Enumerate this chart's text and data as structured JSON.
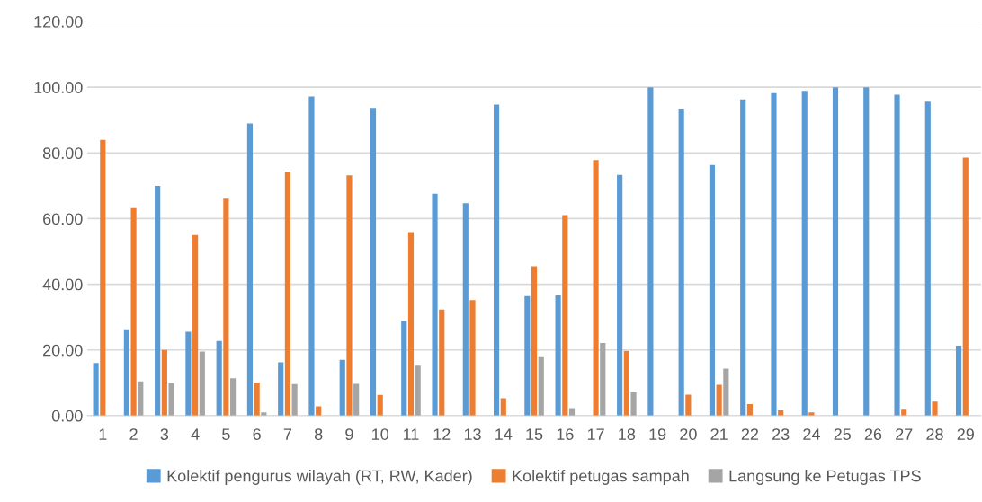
{
  "chart_data": {
    "type": "bar",
    "categories": [
      "1",
      "2",
      "3",
      "4",
      "5",
      "6",
      "7",
      "8",
      "9",
      "10",
      "11",
      "12",
      "13",
      "14",
      "15",
      "16",
      "17",
      "18",
      "19",
      "20",
      "21",
      "22",
      "23",
      "24",
      "25",
      "26",
      "27",
      "28",
      "29"
    ],
    "series": [
      {
        "name": "Kolektif pengurus wilayah (RT, RW, Kader)",
        "color": "#5b9bd5",
        "values": [
          16,
          26.3,
          70,
          25.5,
          22.7,
          89,
          16.2,
          97.2,
          17,
          93.7,
          28.8,
          67.6,
          64.7,
          94.7,
          36.4,
          36.6,
          0,
          73.3,
          100,
          93.5,
          76.3,
          96.3,
          98.2,
          98.9,
          100,
          100,
          97.7,
          95.6,
          21.3
        ]
      },
      {
        "name": "Kolektif petugas sampah",
        "color": "#ed7d31",
        "values": [
          84,
          63.2,
          20,
          55,
          66.1,
          10.1,
          74.3,
          2.8,
          73.2,
          6.3,
          55.9,
          32.3,
          35.2,
          5.3,
          45.5,
          61.1,
          77.8,
          19.7,
          0,
          6.4,
          9.4,
          3.5,
          1.6,
          1,
          0,
          0,
          2.1,
          4.3,
          78.6
        ]
      },
      {
        "name": "Langsung ke Petugas TPS",
        "color": "#a5a5a5",
        "values": [
          0,
          10.4,
          9.9,
          19.5,
          11.4,
          1,
          9.6,
          0,
          9.7,
          0,
          15.2,
          0,
          0,
          0,
          18.1,
          2.3,
          22.1,
          7.1,
          0,
          0,
          14.3,
          0,
          0,
          0,
          0,
          0,
          0,
          0,
          0
        ]
      }
    ],
    "ylim": [
      0,
      120
    ],
    "yticks": [
      {
        "value": 0,
        "label": "0.00"
      },
      {
        "value": 20,
        "label": "20.00"
      },
      {
        "value": 40,
        "label": "40.00"
      },
      {
        "value": 60,
        "label": "60.00"
      },
      {
        "value": 80,
        "label": "80.00"
      },
      {
        "value": 100,
        "label": "100.00"
      },
      {
        "value": 120,
        "label": "120.00"
      }
    ],
    "grid": "y",
    "legend": "bottom"
  }
}
